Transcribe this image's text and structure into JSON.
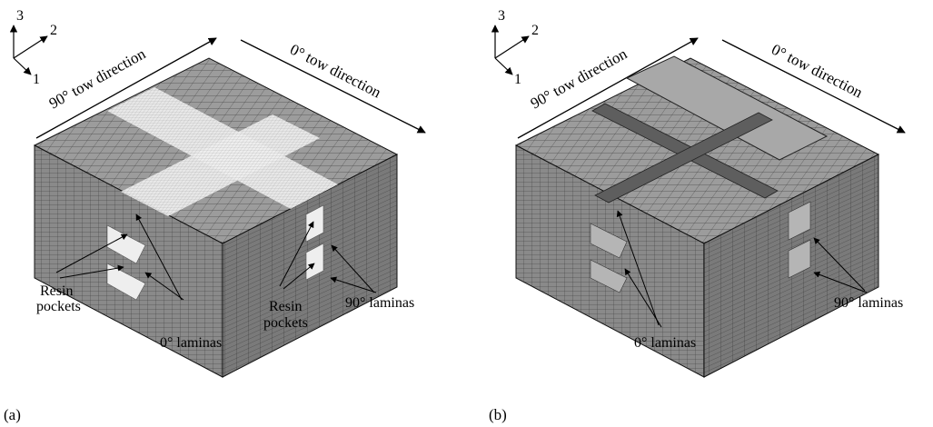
{
  "panels": [
    {
      "id": "a",
      "caption": "(a)",
      "axes": {
        "axis1": "1",
        "axis2": "2",
        "axis3": "3"
      },
      "direction_labels": {
        "left": "90° tow direction",
        "right": "0° tow direction"
      },
      "annotations": {
        "resin_left": [
          "Resin",
          "pockets"
        ],
        "resin_mid": [
          "Resin",
          "pockets"
        ],
        "laminas_0": "0° laminas",
        "laminas_90": "90° laminas"
      }
    },
    {
      "id": "b",
      "caption": "(b)",
      "axes": {
        "axis1": "1",
        "axis2": "2",
        "axis3": "3"
      },
      "direction_labels": {
        "left": "90° tow direction",
        "right": "0° tow direction"
      },
      "annotations": {
        "laminas_0": "0° laminas",
        "laminas_90": "90° laminas"
      }
    }
  ],
  "colors": {
    "mesh_face": "#8f8f8f",
    "mesh_top": "#9c9c9c",
    "mesh_side": "#7a7a7a",
    "resin": "#f0f0f0",
    "lines": "#000000"
  }
}
